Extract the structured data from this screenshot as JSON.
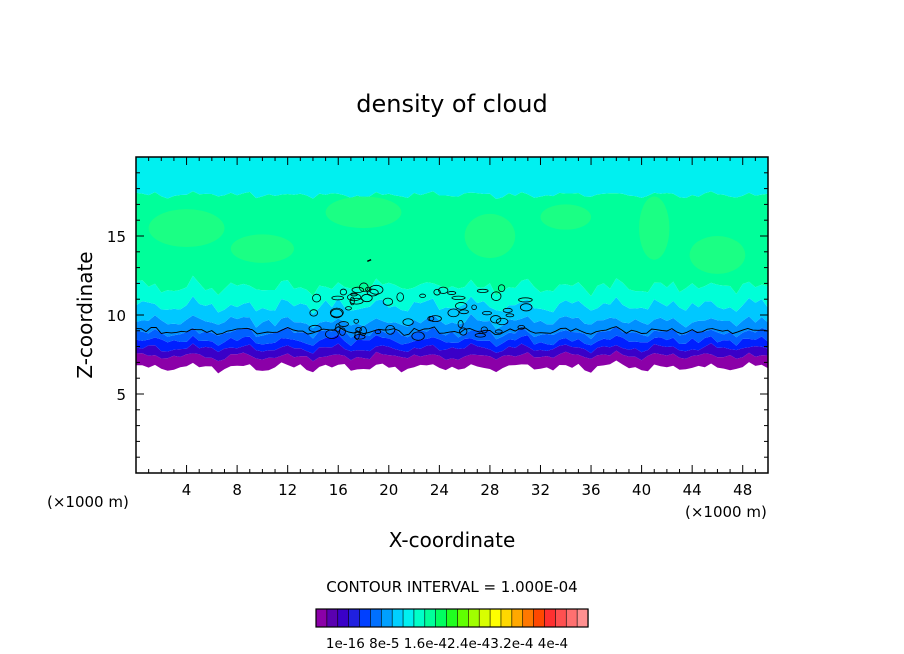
{
  "chart_data": {
    "type": "heatmap",
    "title": "density of cloud",
    "xlabel": "X-coordinate",
    "ylabel": "Z-coordinate",
    "x_unit_left": "(×1000 m)",
    "x_unit_right": "(×1000 m)",
    "xlim": [
      0,
      50
    ],
    "ylim": [
      0,
      20
    ],
    "x_ticks": [
      4,
      8,
      12,
      16,
      20,
      24,
      28,
      32,
      36,
      40,
      44,
      48
    ],
    "y_ticks": [
      5,
      10,
      15
    ],
    "x_tick_labels": [
      "4",
      "8",
      "12",
      "16",
      "20",
      "24",
      "28",
      "32",
      "36",
      "40",
      "44",
      "48"
    ],
    "y_tick_labels": [
      "5",
      "10",
      "15"
    ],
    "contour_interval_text": "CONTOUR INTERVAL = 1.000E-04",
    "colorbar_labels": [
      "1e-16",
      "8e-5",
      "1.6e-4",
      "2.4e-4",
      "3.2e-4",
      "4e-4"
    ],
    "colorbar_label_text": "1e-16 8e-5 1.6e-42.4e-43.2e-4 4e-4",
    "colorbar_colors": [
      "#8b00a8",
      "#5a00b0",
      "#3a00c8",
      "#2020e0",
      "#0040ff",
      "#0070ff",
      "#00a0ff",
      "#00d0ff",
      "#00f0f0",
      "#00ffc8",
      "#00ff9a",
      "#00ff60",
      "#20ff20",
      "#60ff00",
      "#a0ff00",
      "#d8ff00",
      "#ffff00",
      "#ffd800",
      "#ffa800",
      "#ff7800",
      "#ff4800",
      "#ff3030",
      "#ff5050",
      "#ff7070",
      "#ff9090"
    ],
    "description_of_field": {
      "cloud_base_z": 6.5,
      "cloud_top_z": 19.8,
      "dominant_level_upper": "#00ff9a",
      "top_band_color": "#00f0f0",
      "base_band_color": "#8b00a8"
    }
  },
  "colors": {
    "background": "#ffffff",
    "axis": "#000000"
  }
}
